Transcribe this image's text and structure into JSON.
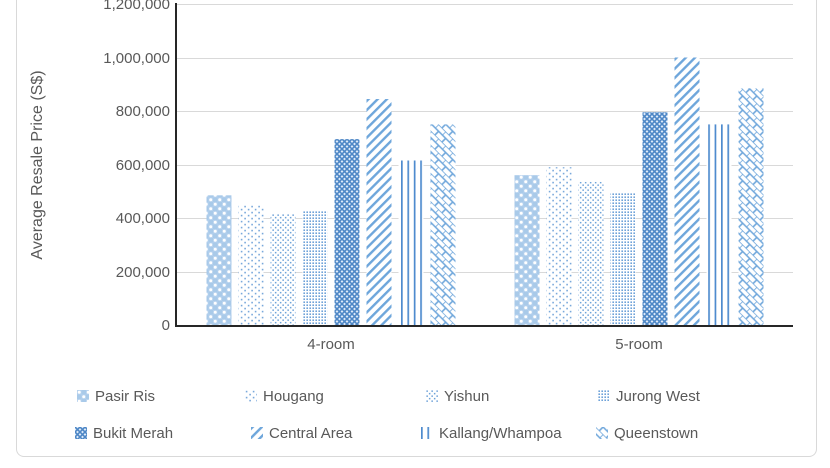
{
  "colors": {
    "accent_blue": "#5b9bd5",
    "light_fill_blue": "#a9cae9",
    "lattice_blue": "#8cb6e3",
    "line_blue": "#4e8bce",
    "stripe_blue": "#6ea6db",
    "text_gray": "#595959",
    "gridline_gray": "#d9d9d9",
    "axis_black": "#262626",
    "frame_border": "#d9d9d9"
  },
  "chart_data": {
    "type": "bar",
    "title": "",
    "ylabel": "Average Resale Price (S$)",
    "xlabel": "",
    "categories": [
      "4-room",
      "5-room"
    ],
    "series": [
      {
        "name": "Pasir Ris",
        "pattern": "diamond-dot-fill",
        "values": [
          485000,
          560000
        ]
      },
      {
        "name": "Hougang",
        "pattern": "sparse-dots",
        "values": [
          450000,
          590000
        ]
      },
      {
        "name": "Yishun",
        "pattern": "medium-dots",
        "values": [
          415000,
          535000
        ]
      },
      {
        "name": "Jurong West",
        "pattern": "dense-dots",
        "values": [
          430000,
          495000
        ]
      },
      {
        "name": "Bukit Merah",
        "pattern": "diamond-lattice",
        "values": [
          695000,
          795000
        ]
      },
      {
        "name": "Central Area",
        "pattern": "downward-diagonal-stripes",
        "values": [
          845000,
          1000000
        ]
      },
      {
        "name": "Kallang/Whampoa",
        "pattern": "vertical-lines",
        "values": [
          615000,
          750000
        ]
      },
      {
        "name": "Queenstown",
        "pattern": "diagonal-brick",
        "values": [
          750000,
          885000
        ]
      }
    ],
    "ylim": [
      0,
      1200000
    ],
    "ytick_step": 200000,
    "ytick_labels_top_to_bottom": [
      "1,200,000",
      "1,000,000",
      "800,000",
      "600,000",
      "400,000",
      "200,000",
      "0"
    ],
    "grid": "horizontal-only",
    "legend_position": "bottom",
    "legend_rows": [
      [
        "Pasir Ris",
        "Hougang",
        "Yishun",
        "Jurong West"
      ],
      [
        "Bukit Merah",
        "Central Area",
        "Kallang/Whampoa",
        "Queenstown"
      ]
    ]
  }
}
